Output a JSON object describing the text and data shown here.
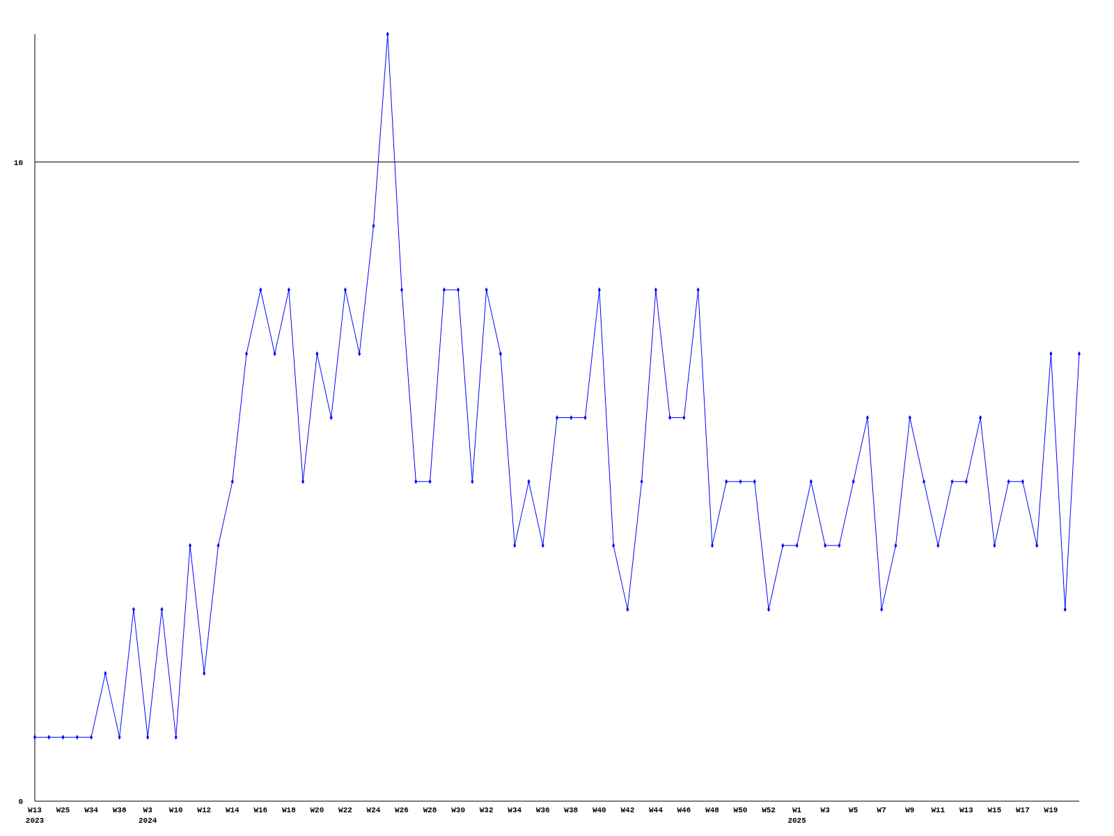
{
  "chart_data": {
    "type": "line",
    "categories": [
      "W13\n2023",
      null,
      "W25",
      null,
      "W34",
      null,
      "W38",
      null,
      "W3\n2024",
      null,
      "W10",
      null,
      "W12",
      null,
      "W14",
      null,
      "W16",
      null,
      "W18",
      null,
      "W20",
      null,
      "W22",
      null,
      "W24",
      null,
      "W26",
      null,
      "W28",
      null,
      "W30",
      null,
      "W32",
      null,
      "W34",
      null,
      "W36",
      null,
      "W38",
      null,
      "W40",
      null,
      "W42",
      null,
      "W44",
      null,
      "W46",
      null,
      "W48",
      null,
      "W50",
      null,
      "W52",
      null,
      "W1\n2025",
      null,
      "W3",
      null,
      "W5",
      null,
      "W7",
      null,
      "W9",
      null,
      "W11",
      null,
      "W13",
      null,
      "W15",
      null,
      "W17",
      null,
      "W19",
      null,
      null
    ],
    "series": [
      {
        "color": "#0000ff",
        "values": [
          1,
          1,
          1,
          1,
          1,
          2,
          1,
          3,
          1,
          3,
          1,
          4,
          2,
          4,
          5,
          7,
          8,
          7,
          8,
          5,
          7,
          6,
          8,
          7,
          9,
          12,
          8,
          5,
          5,
          8,
          8,
          5,
          8,
          7,
          4,
          5,
          4,
          6,
          6,
          6,
          8,
          4,
          3,
          5,
          8,
          6,
          6,
          8,
          4,
          5,
          5,
          5,
          3,
          4,
          4,
          5,
          4,
          4,
          5,
          6,
          3,
          4,
          6,
          5,
          4,
          5,
          5,
          6,
          4,
          5,
          5,
          4,
          7,
          3,
          7
        ]
      }
    ],
    "ylim": [
      0,
      12
    ],
    "yticks": [
      0,
      10
    ],
    "grid": "y",
    "marker": "diamond"
  }
}
